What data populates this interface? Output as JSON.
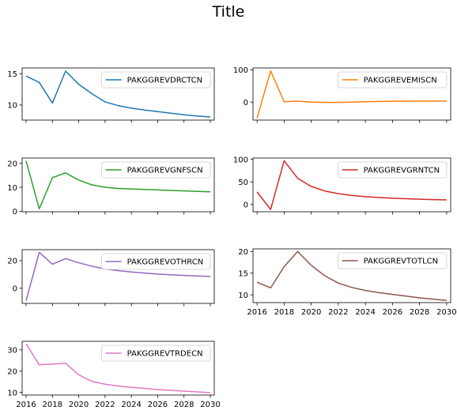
{
  "figure": {
    "title": "Title"
  },
  "chart_data": [
    {
      "type": "line",
      "x": [
        2016,
        2017,
        2018,
        2019,
        2020,
        2021,
        2022,
        2023,
        2024,
        2025,
        2026,
        2027,
        2028,
        2029,
        2030
      ],
      "series": [
        {
          "name": "PAKGGREVDRCTCN",
          "color": "#1f77b4",
          "values": [
            14.6,
            13.6,
            10.3,
            15.4,
            13.3,
            11.8,
            10.5,
            9.9,
            9.5,
            9.2,
            8.95,
            8.7,
            8.45,
            8.25,
            8.1
          ]
        }
      ],
      "xlim": [
        2015.7,
        2030.3
      ],
      "ylim": [
        7.6,
        15.9
      ],
      "yticks": [
        10,
        15
      ],
      "xticks": [
        2016,
        2018,
        2020,
        2022,
        2024,
        2026,
        2028,
        2030
      ],
      "show_xticklabels": false,
      "legend": "upper right",
      "grid": false
    },
    {
      "type": "line",
      "x": [
        2016,
        2017,
        2018,
        2019,
        2020,
        2021,
        2022,
        2023,
        2024,
        2025,
        2026,
        2027,
        2028,
        2029,
        2030
      ],
      "series": [
        {
          "name": "PAKGGREVEMISCN",
          "color": "#ff7f0e",
          "values": [
            -50,
            97,
            1,
            3,
            0,
            -1,
            -1,
            0,
            1,
            2,
            2.5,
            2.7,
            2.8,
            2.9,
            3
          ]
        }
      ],
      "xlim": [
        2015.7,
        2030.3
      ],
      "ylim": [
        -56,
        106
      ],
      "yticks": [
        0,
        100
      ],
      "xticks": [
        2016,
        2018,
        2020,
        2022,
        2024,
        2026,
        2028,
        2030
      ],
      "show_xticklabels": false,
      "legend": "upper right",
      "grid": false
    },
    {
      "type": "line",
      "x": [
        2016,
        2017,
        2018,
        2019,
        2020,
        2021,
        2022,
        2023,
        2024,
        2025,
        2026,
        2027,
        2028,
        2029,
        2030
      ],
      "series": [
        {
          "name": "PAKGGREVGNFSCN",
          "color": "#2ca02c",
          "values": [
            21,
            1,
            14,
            16,
            13,
            11,
            10,
            9.5,
            9.3,
            9.1,
            8.9,
            8.7,
            8.5,
            8.3,
            8.1
          ]
        }
      ],
      "xlim": [
        2015.7,
        2030.3
      ],
      "ylim": [
        -0.2,
        22.2
      ],
      "yticks": [
        0,
        10,
        20
      ],
      "xticks": [
        2016,
        2018,
        2020,
        2022,
        2024,
        2026,
        2028,
        2030
      ],
      "show_xticklabels": false,
      "legend": "upper right",
      "grid": false
    },
    {
      "type": "line",
      "x": [
        2016,
        2017,
        2018,
        2019,
        2020,
        2021,
        2022,
        2023,
        2024,
        2025,
        2026,
        2027,
        2028,
        2029,
        2030
      ],
      "series": [
        {
          "name": "PAKGGREVGRNTCN",
          "color": "#d62728",
          "values": [
            28,
            -11,
            97,
            58,
            40,
            30,
            24,
            20,
            17.5,
            15.5,
            14,
            12.8,
            11.8,
            11,
            10.3
          ]
        }
      ],
      "xlim": [
        2015.7,
        2030.3
      ],
      "ylim": [
        -16,
        103
      ],
      "yticks": [
        0,
        50,
        100
      ],
      "xticks": [
        2016,
        2018,
        2020,
        2022,
        2024,
        2026,
        2028,
        2030
      ],
      "show_xticklabels": false,
      "legend": "upper right",
      "grid": false
    },
    {
      "type": "line",
      "x": [
        2016,
        2017,
        2018,
        2019,
        2020,
        2021,
        2022,
        2023,
        2024,
        2025,
        2026,
        2027,
        2028,
        2029,
        2030
      ],
      "series": [
        {
          "name": "PAKGGREVOTHRCN",
          "color": "#9467bd",
          "values": [
            -9,
            26,
            17.5,
            21.5,
            18.5,
            16,
            14,
            12.8,
            11.8,
            11,
            10.3,
            9.8,
            9.3,
            8.9,
            8.6
          ]
        }
      ],
      "xlim": [
        2015.7,
        2030.3
      ],
      "ylim": [
        -11,
        28
      ],
      "yticks": [
        0,
        20
      ],
      "xticks": [
        2016,
        2018,
        2020,
        2022,
        2024,
        2026,
        2028,
        2030
      ],
      "show_xticklabels": false,
      "legend": "upper right",
      "grid": false
    },
    {
      "type": "line",
      "x": [
        2016,
        2017,
        2018,
        2019,
        2020,
        2021,
        2022,
        2023,
        2024,
        2025,
        2026,
        2027,
        2028,
        2029,
        2030
      ],
      "series": [
        {
          "name": "PAKGGREVTOTLCN",
          "color": "#8c564b",
          "values": [
            12.9,
            11.6,
            16.5,
            20,
            16.8,
            14.4,
            12.7,
            11.7,
            11,
            10.5,
            10.1,
            9.7,
            9.3,
            9,
            8.7
          ]
        }
      ],
      "xlim": [
        2015.7,
        2030.3
      ],
      "ylim": [
        8.2,
        20.6
      ],
      "yticks": [
        10,
        15,
        20
      ],
      "xticks": [
        2016,
        2018,
        2020,
        2022,
        2024,
        2026,
        2028,
        2030
      ],
      "xticklabels": [
        "2016",
        "2018",
        "2020",
        "2022",
        "2024",
        "2026",
        "2028",
        "2030"
      ],
      "show_xticklabels": true,
      "legend": "upper right",
      "grid": false
    },
    {
      "type": "line",
      "x": [
        2016,
        2017,
        2018,
        2019,
        2020,
        2021,
        2022,
        2023,
        2024,
        2025,
        2026,
        2027,
        2028,
        2029,
        2030
      ],
      "series": [
        {
          "name": "PAKGGREVTRDECN",
          "color": "#e377c2",
          "values": [
            32.8,
            23,
            23.3,
            23.7,
            18.3,
            15.2,
            13.9,
            13,
            12.4,
            11.9,
            11.4,
            11,
            10.6,
            10.3,
            9.9
          ]
        }
      ],
      "xlim": [
        2015.7,
        2030.3
      ],
      "ylim": [
        8.8,
        34
      ],
      "yticks": [
        10,
        20,
        30
      ],
      "xticks": [
        2016,
        2018,
        2020,
        2022,
        2024,
        2026,
        2028,
        2030
      ],
      "xticklabels": [
        "2016",
        "2018",
        "2020",
        "2022",
        "2024",
        "2026",
        "2028",
        "2030"
      ],
      "show_xticklabels": true,
      "legend": "upper right",
      "grid": false
    }
  ]
}
